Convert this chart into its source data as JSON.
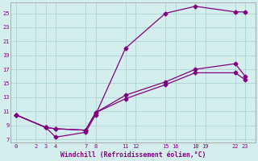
{
  "xlabel": "Windchill (Refroidissement éolien,°C)",
  "bg_color": "#d4eeed",
  "grid_color": "#b0d8d8",
  "line_color": "#800080",
  "x_ticks": [
    0,
    2,
    3,
    4,
    7,
    8,
    11,
    12,
    15,
    16,
    18,
    19,
    22,
    23
  ],
  "y_ticks": [
    7,
    9,
    11,
    13,
    15,
    17,
    19,
    21,
    23,
    25
  ],
  "xlim": [
    -0.5,
    24.0
  ],
  "ylim": [
    6.5,
    26.5
  ],
  "line1_x": [
    0,
    3,
    4,
    7,
    8,
    11,
    15,
    18,
    22,
    23
  ],
  "line1_y": [
    10.5,
    8.7,
    7.3,
    8.0,
    10.5,
    20.0,
    25.0,
    26.0,
    25.2,
    25.2
  ],
  "line2_x": [
    0,
    3,
    4,
    7,
    8,
    11,
    15,
    18,
    22,
    23
  ],
  "line2_y": [
    10.5,
    8.7,
    8.5,
    8.3,
    10.8,
    13.3,
    15.2,
    17.0,
    17.8,
    16.0
  ],
  "line3_x": [
    0,
    3,
    4,
    7,
    8,
    11,
    15,
    18,
    22,
    23
  ],
  "line3_y": [
    10.5,
    8.7,
    8.5,
    8.3,
    10.8,
    12.8,
    14.8,
    16.5,
    16.5,
    15.5
  ]
}
